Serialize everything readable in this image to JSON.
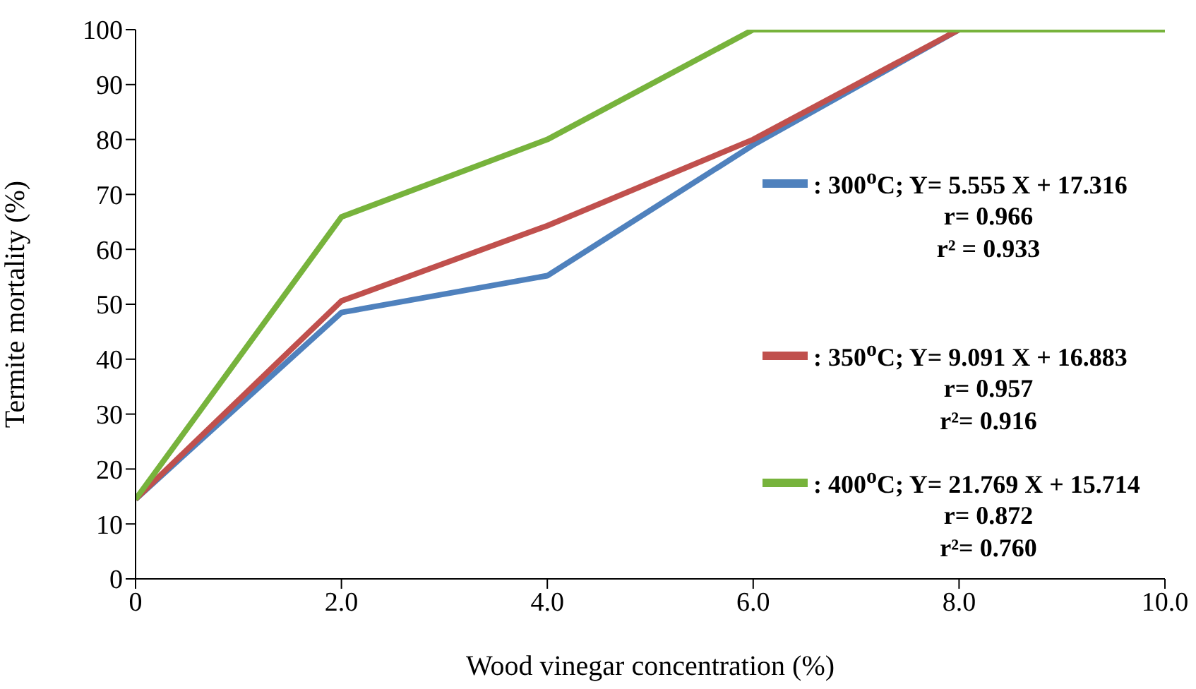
{
  "chart_data": {
    "type": "line",
    "xlabel": "Wood vinegar concentration (%)",
    "ylabel": "Termite mortality (%)",
    "x": [
      0,
      2,
      4,
      6,
      8,
      10
    ],
    "series": [
      {
        "name": ": 300$^{o}$C; Y= 5.555 X + 17.316",
        "color": "#4f81bd",
        "values": [
          14.5,
          48.5,
          55.2,
          79,
          100,
          null
        ]
      },
      {
        "name": ": 350$^{o}$C; Y= 9.091 X + 16.883",
        "color": "#c0504d",
        "values": [
          14.5,
          50.6,
          64.3,
          80,
          100,
          null
        ]
      },
      {
        "name": ":  400$^{o}$C; Y= 21.769 X + 15.714",
        "color": "#77b33c",
        "values": [
          14.5,
          65.9,
          80,
          100,
          100,
          100
        ]
      }
    ],
    "annotations": [
      "r= 0.966",
      "r² = 0.933",
      "r= 0.957",
      "r²= 0.916",
      "r= 0.872",
      "r²= 0.760"
    ],
    "xlim": [
      0,
      10
    ],
    "xticks": [
      0,
      {
        "value": 2,
        "label": "2.0"
      },
      {
        "value": 4,
        "label": "4.0"
      },
      {
        "value": 6,
        "label": "6.0"
      },
      {
        "value": 8,
        "label": "8.0"
      },
      {
        "value": 10,
        "label": "10.0"
      }
    ],
    "ylim": [
      0,
      100
    ],
    "yticks": [
      0,
      10,
      20,
      30,
      40,
      50,
      60,
      70,
      80,
      90,
      100
    ],
    "grid": false,
    "legend": "right",
    "marker": "none",
    "line_style": "solid"
  }
}
